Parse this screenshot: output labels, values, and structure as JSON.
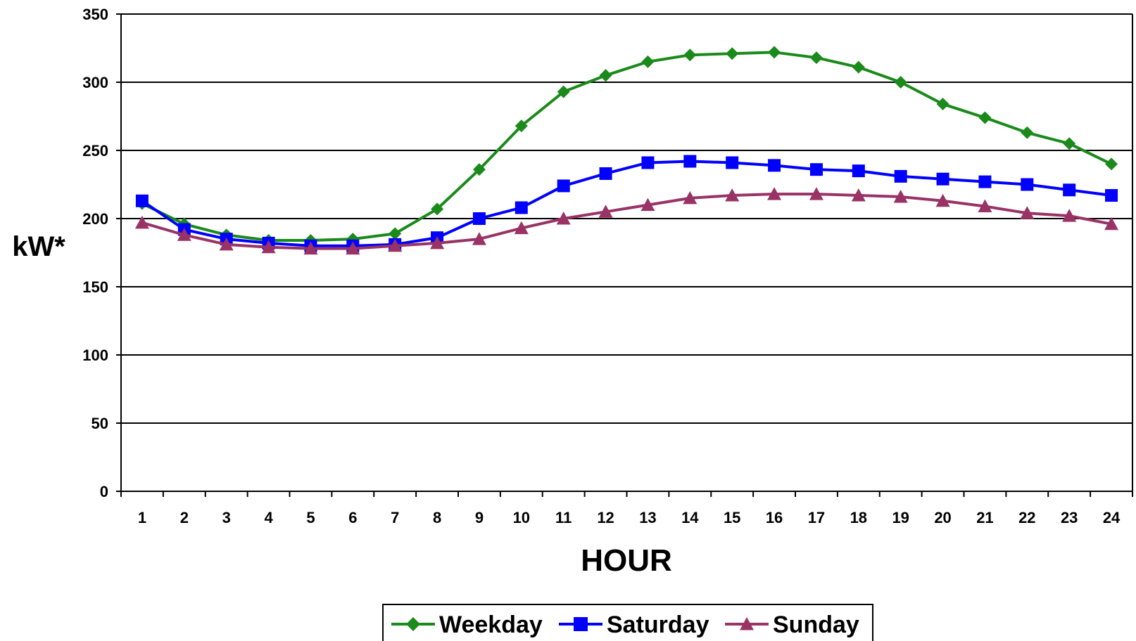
{
  "chart_data": {
    "type": "line",
    "title": "",
    "xlabel": "HOUR",
    "ylabel": "kW*",
    "ylim": [
      0,
      350
    ],
    "yticks": [
      0,
      50,
      100,
      150,
      200,
      250,
      300,
      350
    ],
    "categories": [
      "1",
      "2",
      "3",
      "4",
      "5",
      "6",
      "7",
      "8",
      "9",
      "10",
      "11",
      "12",
      "13",
      "14",
      "15",
      "16",
      "17",
      "18",
      "19",
      "20",
      "21",
      "22",
      "23",
      "24"
    ],
    "grid": "horizontal",
    "legend_position": "bottom",
    "series": [
      {
        "name": "Weekday",
        "color": "#1a8a1a",
        "marker": "diamond",
        "values": [
          211,
          196,
          188,
          184,
          184,
          185,
          189,
          207,
          236,
          268,
          293,
          305,
          315,
          320,
          321,
          322,
          318,
          311,
          300,
          284,
          274,
          263,
          255,
          240
        ]
      },
      {
        "name": "Saturday",
        "color": "#0000ff",
        "marker": "square",
        "values": [
          213,
          192,
          185,
          182,
          180,
          180,
          181,
          186,
          200,
          208,
          224,
          233,
          241,
          242,
          241,
          239,
          236,
          235,
          231,
          229,
          227,
          225,
          221,
          217
        ]
      },
      {
        "name": "Sunday",
        "color": "#993366",
        "marker": "triangle",
        "values": [
          197,
          188,
          181,
          179,
          178,
          178,
          180,
          182,
          185,
          193,
          200,
          205,
          210,
          215,
          217,
          218,
          218,
          217,
          216,
          213,
          209,
          204,
          202,
          196
        ]
      }
    ]
  }
}
